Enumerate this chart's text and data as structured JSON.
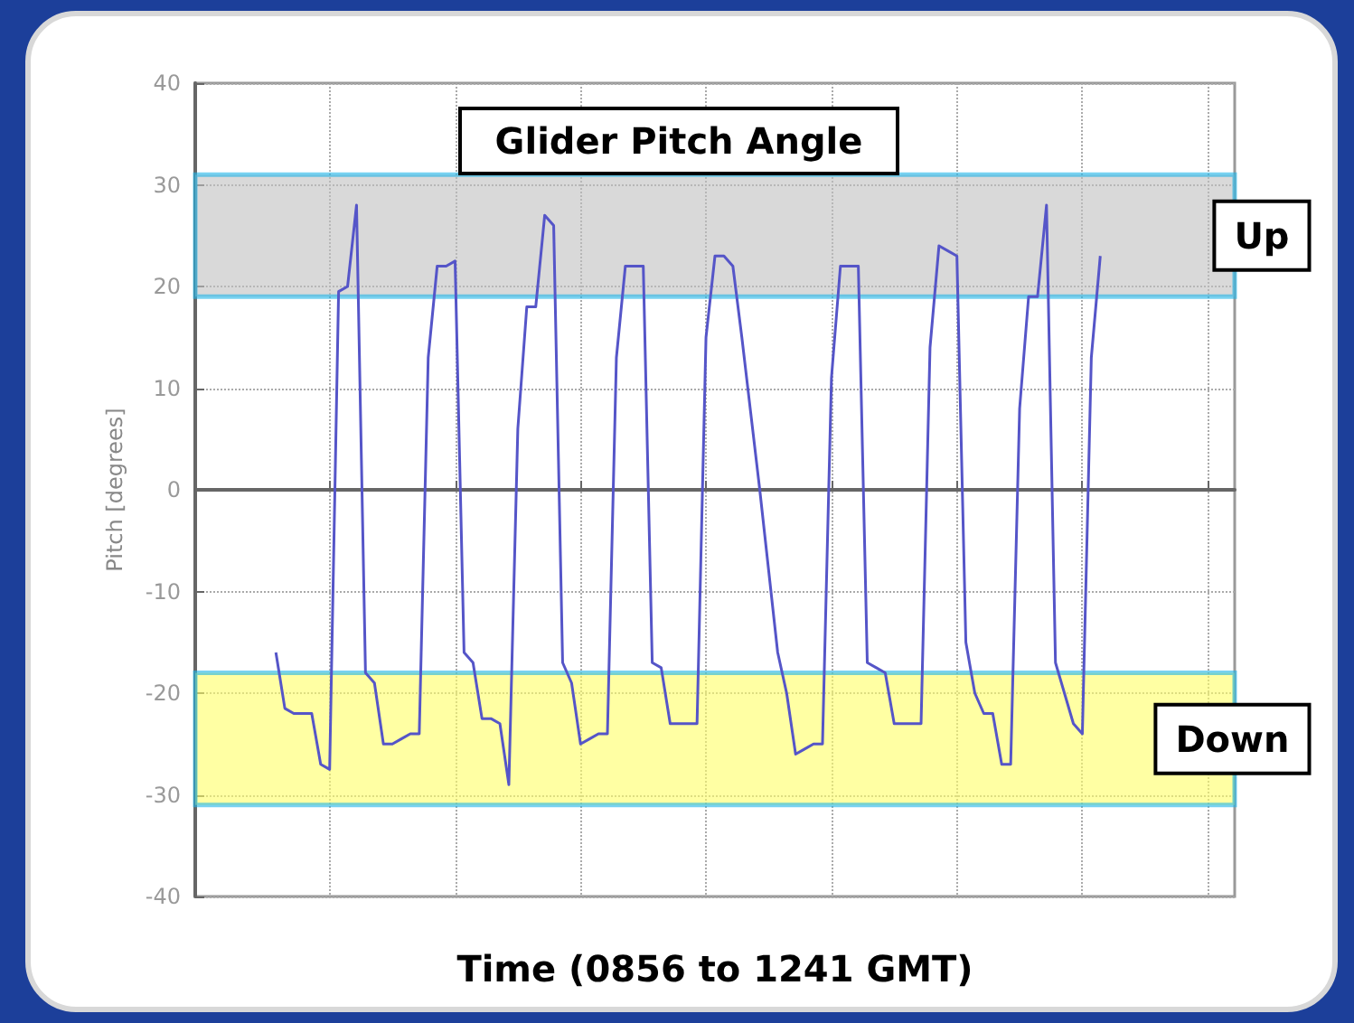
{
  "chart_data": {
    "type": "line",
    "title": "Glider Pitch Angle",
    "xlabel": "Time (0856 to 1241 GMT)",
    "ylabel": "Pitch [degrees]",
    "categories": [
      null,
      null,
      null,
      null,
      null,
      null,
      null,
      null,
      null,
      null,
      null,
      null,
      null,
      null,
      null,
      null,
      null,
      null,
      null,
      null,
      null,
      null,
      null,
      null,
      null,
      null,
      null,
      null,
      null,
      null,
      null,
      null,
      null,
      null,
      null,
      null,
      null,
      null,
      null,
      null,
      null,
      null,
      null,
      null,
      null,
      null,
      null,
      null,
      null,
      null,
      null,
      null,
      null,
      null,
      null,
      null,
      null,
      null,
      null,
      null,
      null,
      null,
      null,
      null,
      null,
      null,
      null,
      null,
      null,
      null,
      null,
      null,
      null,
      null,
      null,
      null,
      null,
      null,
      null,
      null,
      null,
      null,
      null,
      null,
      null,
      null,
      null,
      null,
      null,
      null,
      null,
      null,
      null,
      null,
      null,
      null,
      null,
      null,
      null,
      null,
      null,
      null,
      null,
      null,
      null,
      null,
      null,
      null,
      null,
      null,
      null,
      null,
      null,
      null,
      null,
      null,
      null
    ],
    "series": [
      {
        "color": "#5555c8",
        "values": [
          null,
          null,
          null,
          null,
          null,
          null,
          null,
          null,
          null,
          -16,
          -21.5,
          -22,
          -22,
          -22,
          -27,
          -27.5,
          19.5,
          20,
          28,
          -18,
          -19,
          -25,
          -25,
          -24.5,
          -24,
          -24,
          13,
          22,
          22,
          22.5,
          -16,
          -17,
          -22.5,
          -22.5,
          -23,
          -29,
          6,
          18,
          18,
          27,
          26,
          -17,
          -19,
          -25,
          -24.5,
          -24,
          -24,
          13,
          22,
          22,
          22,
          -17,
          -17.5,
          -23,
          -23,
          -23,
          -23,
          15,
          23,
          23,
          22,
          15,
          7.5,
          0,
          -8,
          -16,
          -20,
          -26,
          -25.5,
          -25,
          -25,
          11,
          22,
          22,
          22,
          -17,
          -17.5,
          -18,
          -23,
          -23,
          -23,
          -23,
          14,
          24,
          23.5,
          23,
          -15,
          -20,
          -22,
          -22,
          -27,
          -27,
          8,
          19,
          19,
          28,
          -17,
          -20,
          -23,
          -24,
          13,
          23,
          null,
          null,
          null,
          null,
          null,
          null,
          null,
          null,
          null,
          null,
          null,
          null,
          null,
          null,
          null
        ]
      }
    ],
    "ylim": [
      -40,
      40
    ],
    "yticks": [
      -40,
      -30,
      -20,
      -10,
      0,
      10,
      20,
      30,
      40
    ],
    "grid": true,
    "marker": "none",
    "line_style": "solid",
    "bands": [
      {
        "axis": "y",
        "from": 19,
        "to": 31,
        "label": "Up",
        "color": "#c0c0c0"
      },
      {
        "axis": "y",
        "from": -31,
        "to": -18,
        "label": "Down",
        "color": "#ffff66"
      }
    ]
  }
}
